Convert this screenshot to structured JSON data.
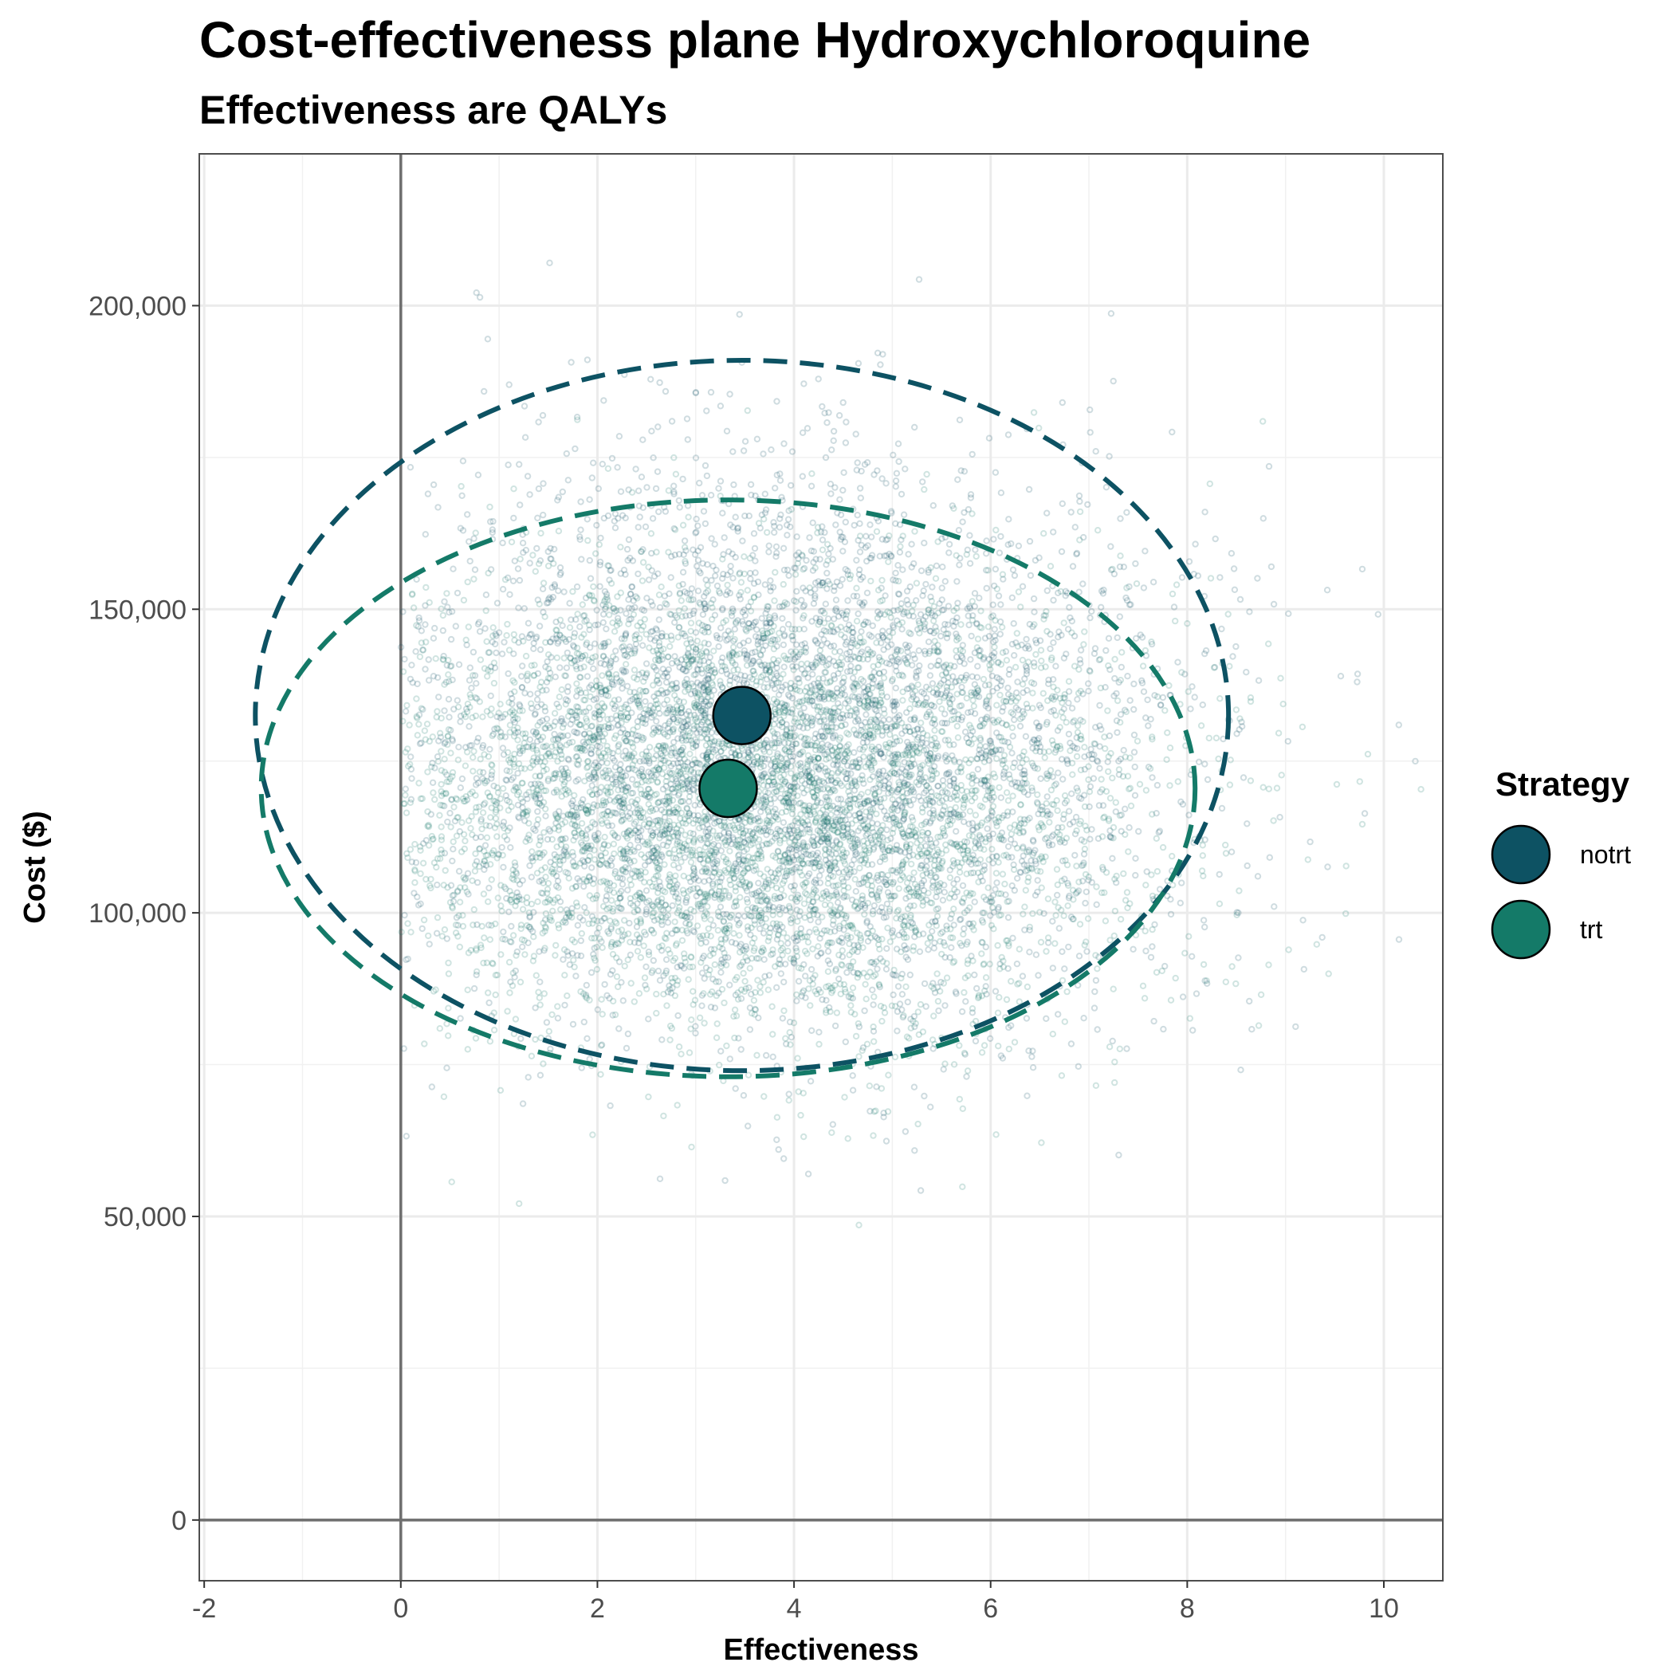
{
  "chart_data": {
    "type": "scatter",
    "title": "Cost-effectiveness plane Hydroxychloroquine",
    "subtitle": "Effectiveness are QALYs",
    "xlabel": "Effectiveness",
    "ylabel": "Cost ($)",
    "xlim": [
      -2.05,
      10.6
    ],
    "ylim": [
      -10000,
      225000
    ],
    "x_ticks": [
      -2,
      0,
      2,
      4,
      6,
      8,
      10
    ],
    "x_tick_labels": [
      "-2",
      "0",
      "2",
      "4",
      "6",
      "8",
      "10"
    ],
    "y_ticks": [
      0,
      50000,
      100000,
      150000,
      200000
    ],
    "y_tick_labels": [
      "0",
      "50,000",
      "100,000",
      "150,000",
      "200,000"
    ],
    "grid": true,
    "reference_lines": {
      "x": 0,
      "y": 0
    },
    "legend": {
      "title": "Strategy",
      "position": "right"
    },
    "series": [
      {
        "name": "notrt",
        "color": "#0d5263",
        "mean": {
          "x": 3.47,
          "y": 132500
        },
        "ellipse_95": {
          "cx": 3.47,
          "cy": 132500,
          "rx": 4.95,
          "ry": 58500
        },
        "cloud": {
          "mean_x": 3.9,
          "mean_y": 127000,
          "sd_x": 2.0,
          "sd_y": 23000,
          "x_min": 0.0
        }
      },
      {
        "name": "trt",
        "color": "#147a68",
        "mean": {
          "x": 3.33,
          "y": 120500
        },
        "ellipse_95": {
          "cx": 3.33,
          "cy": 120500,
          "rx": 4.75,
          "ry": 47500
        },
        "cloud": {
          "mean_x": 3.6,
          "mean_y": 118000,
          "sd_x": 2.0,
          "sd_y": 19000,
          "x_min": 0.0
        }
      }
    ]
  }
}
